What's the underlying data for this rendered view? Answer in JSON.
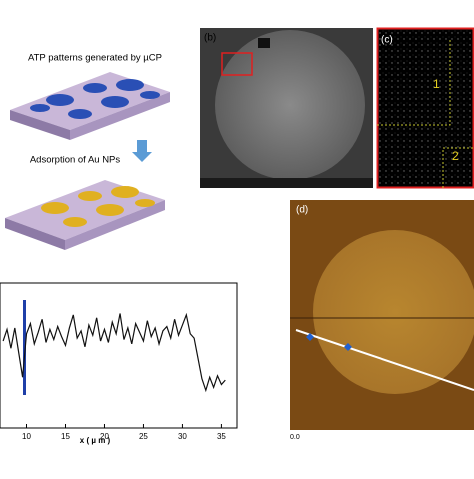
{
  "panel_a": {
    "caption_top": "ATP patterns generated by µCP",
    "caption_bottom": "Adsorption of Au NPs"
  },
  "panel_b": {
    "label": "(b)"
  },
  "panel_c": {
    "label": "(c)",
    "region_1": "1",
    "region_2": "2"
  },
  "panel_d": {
    "label": "(d)",
    "axis_start": "0.0"
  },
  "chart_data": {
    "type": "line",
    "xlabel": "x ( µ m )",
    "x": [
      7,
      7.5,
      8,
      8.5,
      9,
      9.5,
      10,
      10.5,
      11,
      11.5,
      12,
      12.5,
      13,
      13.5,
      14,
      14.5,
      15,
      15.5,
      16,
      16.5,
      17,
      17.5,
      18,
      18.5,
      19,
      19.5,
      20,
      20.5,
      21,
      21.5,
      22,
      22.5,
      23,
      23.5,
      24,
      24.5,
      25,
      25.5,
      26,
      26.5,
      27,
      27.5,
      28,
      28.5,
      29,
      29.5,
      30,
      30.5,
      31,
      31.5,
      32,
      32.5,
      33,
      33.5,
      34,
      34.5,
      35,
      35.5
    ],
    "series": [
      {
        "name": null,
        "color": "#111111",
        "values": [
          6.0,
          6.8,
          5.5,
          6.9,
          5.2,
          3.5,
          6.5,
          7.2,
          5.8,
          6.6,
          7.5,
          5.9,
          6.8,
          6.1,
          7.0,
          6.3,
          5.7,
          6.9,
          7.8,
          6.2,
          6.7,
          5.6,
          7.1,
          6.4,
          7.6,
          6.0,
          6.8,
          5.9,
          7.3,
          6.5,
          7.9,
          6.1,
          6.9,
          5.8,
          7.2,
          6.6,
          6.0,
          7.4,
          6.3,
          6.9,
          5.8,
          6.7,
          7.0,
          6.2,
          7.5,
          6.4,
          7.1,
          7.8,
          6.5,
          6.2,
          4.8,
          3.4,
          2.6,
          3.5,
          2.8,
          3.6,
          3.0,
          3.3
        ]
      }
    ],
    "xlim": [
      6.6,
      37
    ],
    "xticks": [
      10,
      15,
      20,
      25,
      30,
      35
    ],
    "ylim": [
      0,
      10
    ]
  }
}
